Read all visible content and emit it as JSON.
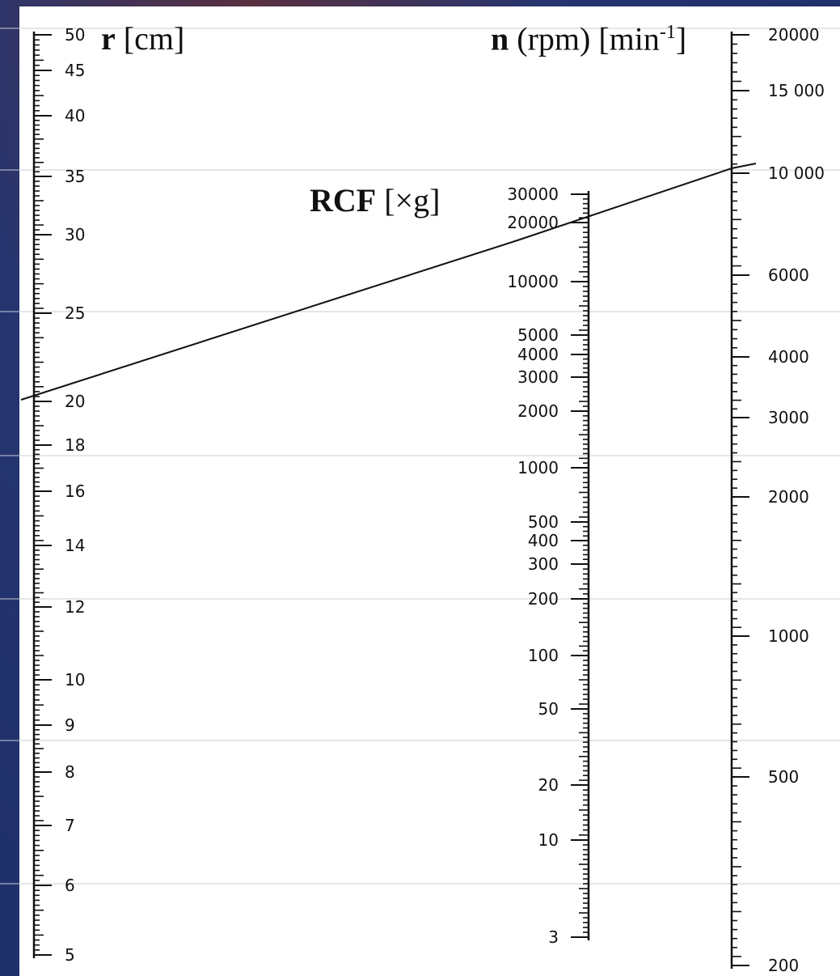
{
  "titles": {
    "r": {
      "symbol": "r",
      "unit": "[cm]"
    },
    "rcf": {
      "symbol": "RCF",
      "unit": "[×g]"
    },
    "n": {
      "symbol": "n",
      "unit_prefix": "(rpm) [min",
      "unit_sup": "-1",
      "unit_suffix": "]"
    }
  },
  "scales": {
    "r": {
      "labels": [
        "50",
        "45",
        "40",
        "35",
        "30",
        "25",
        "20",
        "18",
        "16",
        "14",
        "12",
        "10",
        "9",
        "8",
        "7",
        "6",
        "5"
      ],
      "values": [
        50,
        45,
        40,
        35,
        30,
        25,
        20,
        18,
        16,
        14,
        12,
        10,
        9,
        8,
        7,
        6,
        5
      ]
    },
    "rcf": {
      "labels": [
        "30000",
        "20000",
        "10000",
        "5000",
        "4000",
        "3000",
        "2000",
        "1000",
        "500",
        "400",
        "300",
        "200",
        "100",
        "50",
        "20",
        "10",
        "3"
      ],
      "values": [
        30000,
        20000,
        10000,
        5000,
        4000,
        3000,
        2000,
        1000,
        500,
        400,
        300,
        200,
        100,
        50,
        20,
        10,
        3
      ]
    },
    "n": {
      "labels": [
        "20000",
        "15 000",
        "10 000",
        "6000",
        "4000",
        "3000",
        "2000",
        "1000",
        "500",
        "200"
      ],
      "values": [
        20000,
        15000,
        10000,
        6000,
        4000,
        3000,
        2000,
        1000,
        500,
        200
      ]
    }
  },
  "example_line": {
    "r_cm": 20.5,
    "n_rpm": 10000,
    "rcf_g": 22000
  },
  "colors": {
    "background": "#1c2f6b",
    "sheet": "#ffffff",
    "ink": "#111111"
  }
}
